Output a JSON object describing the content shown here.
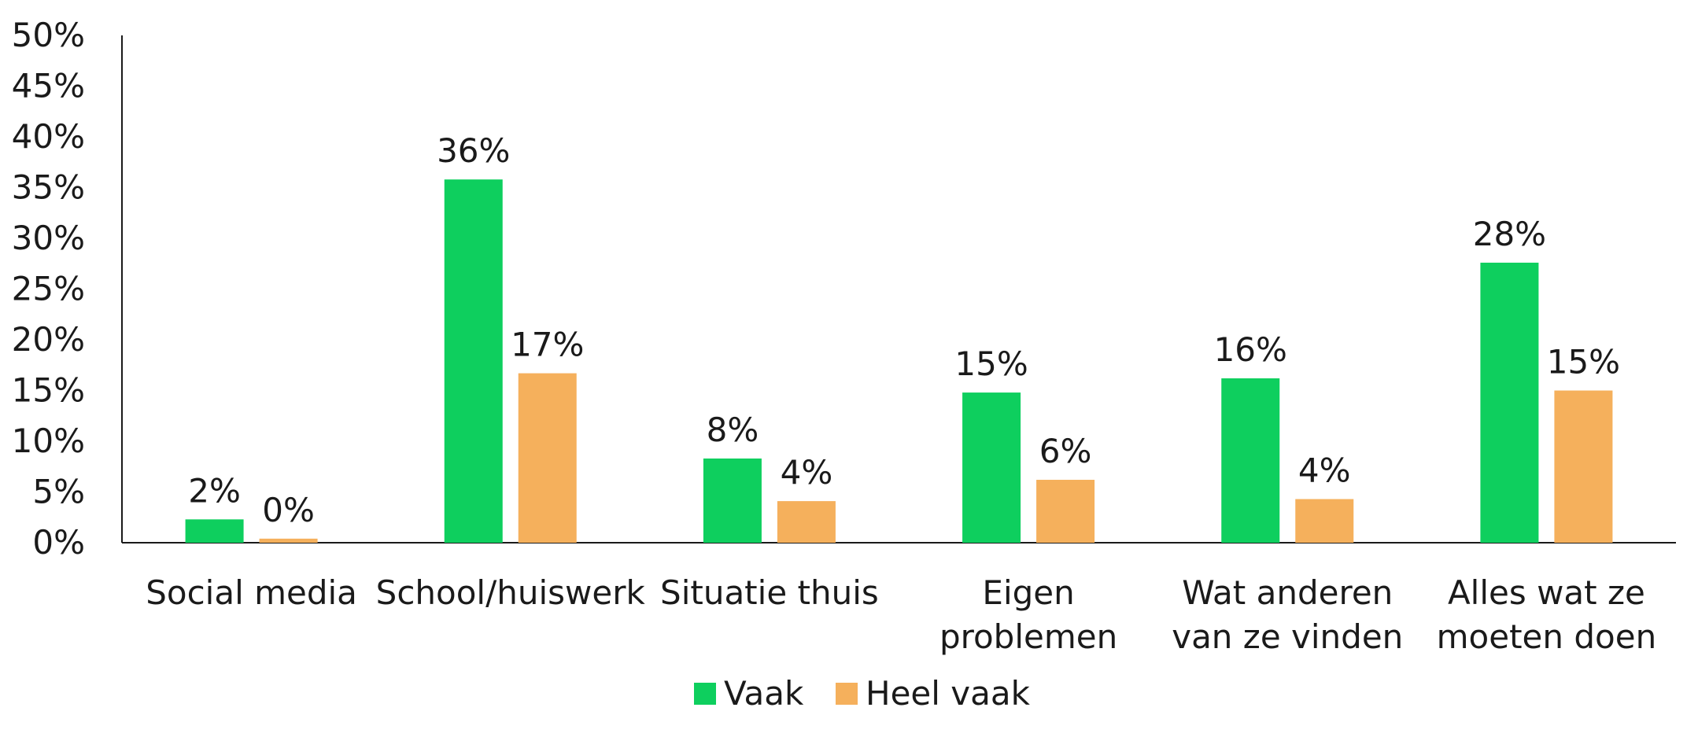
{
  "chart_data": {
    "type": "bar",
    "categories": [
      [
        "Social media"
      ],
      [
        "School/huiswerk"
      ],
      [
        "Situatie thuis"
      ],
      [
        "Eigen",
        "problemen"
      ],
      [
        "Wat anderen",
        "van ze vinden"
      ],
      [
        "Alles wat ze",
        "moeten doen"
      ]
    ],
    "series": [
      {
        "name": "Vaak",
        "color": "#0ecf5e",
        "values": [
          2.3,
          35.8,
          8.3,
          14.8,
          16.2,
          27.6
        ],
        "labels": [
          "2%",
          "36%",
          "8%",
          "15%",
          "16%",
          "28%"
        ]
      },
      {
        "name": "Heel vaak",
        "color": "#f5b05c",
        "values": [
          0.4,
          16.7,
          4.1,
          6.2,
          4.3,
          15.0
        ],
        "labels": [
          "0%",
          "17%",
          "4%",
          "6%",
          "4%",
          "15%"
        ]
      }
    ],
    "yticks": [
      "0%",
      "5%",
      "10%",
      "15%",
      "20%",
      "25%",
      "30%",
      "35%",
      "40%",
      "45%",
      "50%"
    ],
    "ylim": [
      0,
      50
    ],
    "grid": false,
    "legend": "bottom-center"
  }
}
